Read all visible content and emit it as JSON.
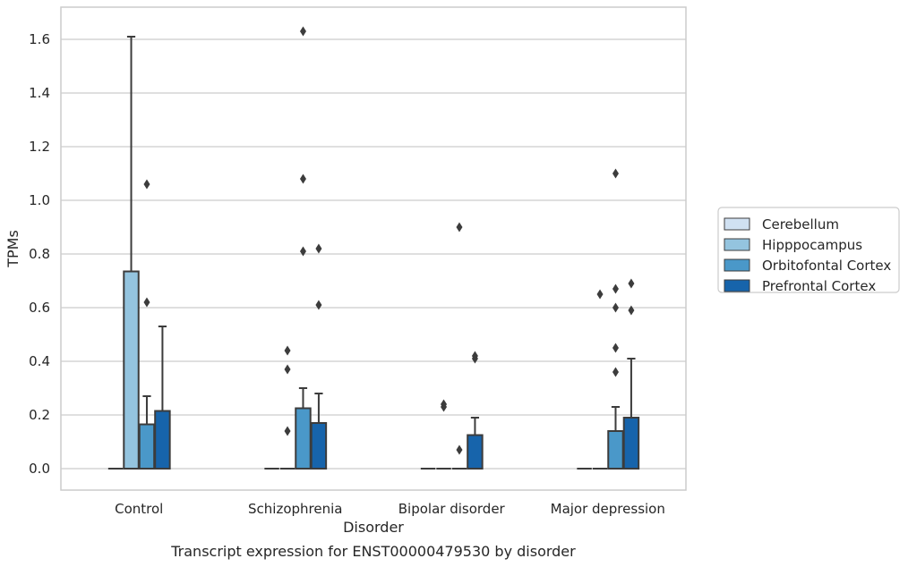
{
  "chart_data": {
    "type": "boxplot",
    "caption": "Transcript expression for ENST00000479530 by disorder",
    "xlabel": "Disorder",
    "ylabel": "TPMs",
    "ylim": [
      -0.08,
      1.72
    ],
    "yticks": [
      0.0,
      0.2,
      0.4,
      0.6,
      0.8,
      1.0,
      1.2,
      1.4,
      1.6
    ],
    "ytick_labels": [
      "0.0",
      "0.2",
      "0.4",
      "0.6",
      "0.8",
      "1.0",
      "1.2",
      "1.4",
      "1.6"
    ],
    "grid": "horizontal",
    "legend_position": "right",
    "categories": [
      "Control",
      "Schizophrenia",
      "Bipolar disorder",
      "Major depression"
    ],
    "series": [
      {
        "name": "Cerebellum",
        "color": "#d0e1f2",
        "boxes": [
          {
            "q1": 0,
            "median": 0,
            "q3": 0,
            "whisker_low": 0,
            "whisker_high": 0,
            "outliers": []
          },
          {
            "q1": 0,
            "median": 0,
            "q3": 0,
            "whisker_low": 0,
            "whisker_high": 0,
            "outliers": []
          },
          {
            "q1": 0,
            "median": 0,
            "q3": 0,
            "whisker_low": 0,
            "whisker_high": 0,
            "outliers": []
          },
          {
            "q1": 0,
            "median": 0,
            "q3": 0,
            "whisker_low": 0,
            "whisker_high": 0,
            "outliers": []
          }
        ]
      },
      {
        "name": "Hipppocampus",
        "color": "#94c4df",
        "boxes": [
          {
            "q1": 0,
            "median": 0,
            "q3": 0.735,
            "whisker_low": 0,
            "whisker_high": 1.61,
            "outliers": []
          },
          {
            "q1": 0,
            "median": 0,
            "q3": 0,
            "whisker_low": 0,
            "whisker_high": 0,
            "outliers": [
              0.14,
              0.37,
              0.44
            ]
          },
          {
            "q1": 0,
            "median": 0,
            "q3": 0,
            "whisker_low": 0,
            "whisker_high": 0,
            "outliers": [
              0.23,
              0.24
            ]
          },
          {
            "q1": 0,
            "median": 0,
            "q3": 0,
            "whisker_low": 0,
            "whisker_high": 0,
            "outliers": [
              0.65
            ]
          }
        ]
      },
      {
        "name": "Orbitofontal Cortex",
        "color": "#4a98c9",
        "boxes": [
          {
            "q1": 0,
            "median": 0,
            "q3": 0.165,
            "whisker_low": 0,
            "whisker_high": 0.27,
            "outliers": [
              0.62,
              1.06
            ]
          },
          {
            "q1": 0,
            "median": 0,
            "q3": 0.225,
            "whisker_low": 0,
            "whisker_high": 0.3,
            "outliers": [
              0.81,
              1.08,
              1.63
            ]
          },
          {
            "q1": 0,
            "median": 0,
            "q3": 0,
            "whisker_low": 0,
            "whisker_high": 0,
            "outliers": [
              0.07,
              0.9
            ]
          },
          {
            "q1": 0,
            "median": 0,
            "q3": 0.14,
            "whisker_low": 0,
            "whisker_high": 0.23,
            "outliers": [
              0.36,
              0.45,
              0.6,
              0.67,
              1.1
            ]
          }
        ]
      },
      {
        "name": "Prefrontal Cortex",
        "color": "#1764ab",
        "boxes": [
          {
            "q1": 0,
            "median": 0,
            "q3": 0.215,
            "whisker_low": 0,
            "whisker_high": 0.53,
            "outliers": []
          },
          {
            "q1": 0,
            "median": 0,
            "q3": 0.17,
            "whisker_low": 0,
            "whisker_high": 0.28,
            "outliers": [
              0.61,
              0.82
            ]
          },
          {
            "q1": 0,
            "median": 0,
            "q3": 0.125,
            "whisker_low": 0,
            "whisker_high": 0.19,
            "outliers": [
              0.41,
              0.42
            ]
          },
          {
            "q1": 0,
            "median": 0,
            "q3": 0.19,
            "whisker_low": 0,
            "whisker_high": 0.41,
            "outliers": [
              0.59,
              0.69
            ]
          }
        ]
      }
    ]
  }
}
